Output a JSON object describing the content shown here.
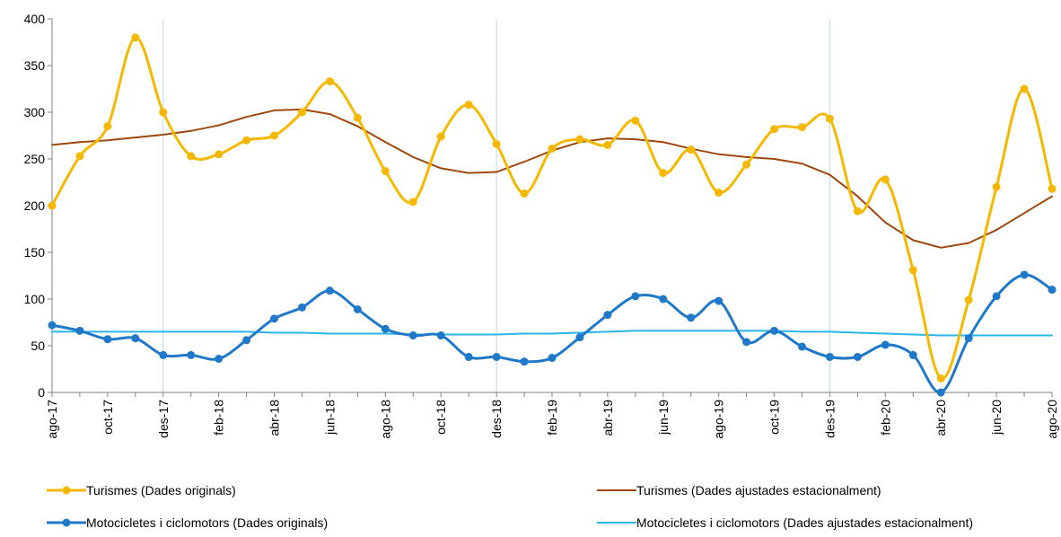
{
  "chart_data": {
    "type": "line",
    "title": "",
    "xlabel": "",
    "ylabel": "",
    "ylim": [
      0,
      400
    ],
    "yticks": [
      0,
      50,
      100,
      150,
      200,
      250,
      300,
      350,
      400
    ],
    "x": [
      "ago-17",
      "set-17",
      "oct-17",
      "nov-17",
      "des-17",
      "gen-18",
      "feb-18",
      "mar-18",
      "abr-18",
      "mai-18",
      "jun-18",
      "jul-18",
      "ago-18",
      "set-18",
      "oct-18",
      "nov-18",
      "des-18",
      "gen-19",
      "feb-19",
      "mar-19",
      "abr-19",
      "mai-19",
      "jun-19",
      "jul-19",
      "ago-19",
      "set-19",
      "oct-19",
      "nov-19",
      "des-19",
      "gen-20",
      "feb-20",
      "mar-20",
      "abr-20",
      "mai-20",
      "jun-20",
      "jul-20",
      "ago-20"
    ],
    "xtick_labels": [
      "ago-17",
      "oct-17",
      "des-17",
      "feb-18",
      "abr-18",
      "jun-18",
      "ago-18",
      "oct-18",
      "des-18",
      "feb-19",
      "abr-19",
      "jun-19",
      "ago-19",
      "oct-19",
      "des-19",
      "feb-20",
      "abr-20",
      "jun-20",
      "ago-20"
    ],
    "xtick_indices": [
      0,
      2,
      4,
      6,
      8,
      10,
      12,
      14,
      16,
      18,
      20,
      22,
      24,
      26,
      28,
      30,
      32,
      34,
      36
    ],
    "vlines_at": [
      "des-17",
      "des-18",
      "des-19"
    ],
    "grid": false,
    "legend_position": "bottom",
    "series": [
      {
        "name": "Turismes (Dades originals)",
        "color": "#F5B800",
        "markers": true,
        "smooth": true,
        "width": 3,
        "values": [
          200,
          253,
          285,
          380,
          300,
          253,
          255,
          270,
          275,
          300,
          333,
          294,
          237,
          204,
          274,
          308,
          266,
          213,
          261,
          271,
          265,
          291,
          235,
          260,
          214,
          244,
          282,
          284,
          293,
          194,
          228,
          131,
          15,
          99,
          220,
          325,
          218
        ]
      },
      {
        "name": "Turismes (Dades ajustades estacionalment)",
        "color": "#9E480E",
        "markers": false,
        "smooth": false,
        "width": 2,
        "values": [
          265,
          268,
          270,
          273,
          276,
          280,
          286,
          295,
          302,
          303,
          298,
          285,
          268,
          252,
          240,
          235,
          236,
          247,
          259,
          268,
          272,
          271,
          268,
          261,
          255,
          252,
          250,
          245,
          233,
          210,
          182,
          163,
          155,
          160,
          174,
          192,
          210
        ]
      },
      {
        "name": "Motocicletes i ciclomotors (Dades originals)",
        "color": "#1F78C8",
        "markers": true,
        "smooth": true,
        "width": 3,
        "values": [
          72,
          66,
          57,
          58,
          40,
          40,
          36,
          56,
          79,
          91,
          109,
          89,
          68,
          61,
          61,
          38,
          38,
          33,
          37,
          59,
          83,
          103,
          100,
          80,
          98,
          54,
          66,
          49,
          38,
          38,
          51,
          40,
          0,
          58,
          103,
          126,
          110
        ]
      },
      {
        "name": "Motocicletes i ciclomotors (Dades ajustades estacionalment)",
        "color": "#2BB5E8",
        "markers": false,
        "smooth": false,
        "width": 2,
        "values": [
          65,
          65,
          65,
          65,
          65,
          65,
          65,
          65,
          64,
          64,
          63,
          63,
          63,
          62,
          62,
          62,
          62,
          63,
          63,
          64,
          65,
          66,
          66,
          66,
          66,
          66,
          66,
          65,
          65,
          64,
          63,
          62,
          61,
          61,
          61,
          61,
          61
        ]
      }
    ]
  }
}
